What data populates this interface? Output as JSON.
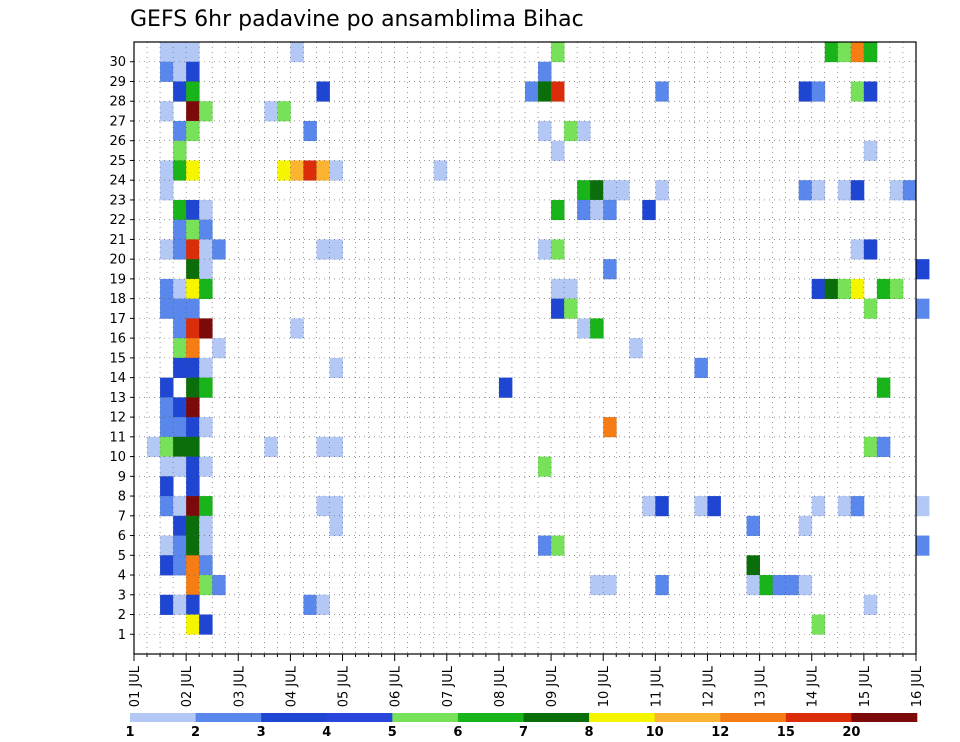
{
  "chart_data": {
    "type": "heatmap",
    "title": "GEFS 6hr padavine po ansamblima Bihac",
    "xlabel": "",
    "ylabel": "",
    "x_tick_labels": [
      "01 JUL",
      "02 JUL",
      "03 JUL",
      "04 JUL",
      "05 JUL",
      "06 JUL",
      "07 JUL",
      "08 JUL",
      "09 JUL",
      "10 JUL",
      "11 JUL",
      "12 JUL",
      "13 JUL",
      "14 JUL",
      "15 JUL",
      "16 JUL"
    ],
    "y_tick_labels": [
      "1",
      "2",
      "3",
      "4",
      "5",
      "6",
      "7",
      "8",
      "9",
      "10",
      "11",
      "12",
      "13",
      "14",
      "15",
      "16",
      "17",
      "18",
      "19",
      "20",
      "21",
      "22",
      "23",
      "24",
      "25",
      "26",
      "27",
      "28",
      "29",
      "30"
    ],
    "x_step_hours": 6,
    "grid": true,
    "colorbar": {
      "levels": [
        "1",
        "2",
        "3",
        "4",
        "5",
        "6",
        "7",
        "8",
        "10",
        "12",
        "15",
        "20"
      ],
      "colors": [
        "#b4c8f5",
        "#5a87eb",
        "#1e46d2",
        "#2846dc",
        "#78e15a",
        "#19b419",
        "#0a6e0a",
        "#f5f500",
        "#fab432",
        "#f57d14",
        "#dc2d0a",
        "#7d0a0a"
      ]
    },
    "cell_colors": [
      "#b4c8f5",
      "#5a87eb",
      "#1e46d2",
      "#78e15a",
      "#19b419",
      "#0a6e0a",
      "#f5f500",
      "#fab432",
      "#f57d14",
      "#dc2d0a",
      "#7d0a0a"
    ],
    "cells": [
      [
        2,
        30,
        0
      ],
      [
        3,
        30,
        0
      ],
      [
        4,
        30,
        0
      ],
      [
        12,
        30,
        0
      ],
      [
        32,
        30,
        3
      ],
      [
        53,
        30,
        4
      ],
      [
        54,
        30,
        3
      ],
      [
        55,
        30,
        8
      ],
      [
        56,
        30,
        4
      ],
      [
        2,
        29,
        1
      ],
      [
        3,
        29,
        0
      ],
      [
        4,
        29,
        2
      ],
      [
        31,
        29,
        1
      ],
      [
        3,
        28,
        2
      ],
      [
        4,
        28,
        4
      ],
      [
        14,
        28,
        2
      ],
      [
        30,
        28,
        1
      ],
      [
        31,
        28,
        5
      ],
      [
        32,
        28,
        9
      ],
      [
        40,
        28,
        1
      ],
      [
        51,
        28,
        2
      ],
      [
        52,
        28,
        1
      ],
      [
        55,
        28,
        3
      ],
      [
        56,
        28,
        2
      ],
      [
        2,
        27,
        0
      ],
      [
        4,
        27,
        10
      ],
      [
        5,
        27,
        3
      ],
      [
        10,
        27,
        0
      ],
      [
        11,
        27,
        3
      ],
      [
        3,
        26,
        1
      ],
      [
        4,
        26,
        3
      ],
      [
        13,
        26,
        1
      ],
      [
        31,
        26,
        0
      ],
      [
        33,
        26,
        3
      ],
      [
        34,
        26,
        0
      ],
      [
        3,
        25,
        3
      ],
      [
        32,
        25,
        0
      ],
      [
        56,
        25,
        0
      ],
      [
        2,
        24,
        0
      ],
      [
        3,
        24,
        4
      ],
      [
        4,
        24,
        6
      ],
      [
        11,
        24,
        6
      ],
      [
        12,
        24,
        7
      ],
      [
        13,
        24,
        9
      ],
      [
        14,
        24,
        7
      ],
      [
        15,
        24,
        0
      ],
      [
        23,
        24,
        0
      ],
      [
        2,
        23,
        0
      ],
      [
        34,
        23,
        4
      ],
      [
        35,
        23,
        5
      ],
      [
        36,
        23,
        0
      ],
      [
        37,
        23,
        0
      ],
      [
        40,
        23,
        0
      ],
      [
        51,
        23,
        1
      ],
      [
        52,
        23,
        0
      ],
      [
        54,
        23,
        0
      ],
      [
        55,
        23,
        2
      ],
      [
        58,
        23,
        0
      ],
      [
        59,
        23,
        1
      ],
      [
        3,
        22,
        4
      ],
      [
        4,
        22,
        2
      ],
      [
        5,
        22,
        0
      ],
      [
        32,
        22,
        4
      ],
      [
        34,
        22,
        1
      ],
      [
        35,
        22,
        0
      ],
      [
        36,
        22,
        1
      ],
      [
        39,
        22,
        2
      ],
      [
        3,
        21,
        1
      ],
      [
        4,
        21,
        3
      ],
      [
        5,
        21,
        1
      ],
      [
        2,
        20,
        0
      ],
      [
        3,
        20,
        1
      ],
      [
        4,
        20,
        9
      ],
      [
        5,
        20,
        0
      ],
      [
        6,
        20,
        1
      ],
      [
        14,
        20,
        0
      ],
      [
        15,
        20,
        0
      ],
      [
        31,
        20,
        0
      ],
      [
        32,
        20,
        3
      ],
      [
        55,
        20,
        0
      ],
      [
        56,
        20,
        2
      ],
      [
        4,
        19,
        5
      ],
      [
        5,
        19,
        0
      ],
      [
        36,
        19,
        1
      ],
      [
        60,
        19,
        2
      ],
      [
        2,
        18,
        1
      ],
      [
        3,
        18,
        0
      ],
      [
        4,
        18,
        6
      ],
      [
        5,
        18,
        4
      ],
      [
        32,
        18,
        0
      ],
      [
        33,
        18,
        0
      ],
      [
        52,
        18,
        2
      ],
      [
        53,
        18,
        5
      ],
      [
        54,
        18,
        3
      ],
      [
        55,
        18,
        6
      ],
      [
        57,
        18,
        4
      ],
      [
        58,
        18,
        3
      ],
      [
        2,
        17,
        1
      ],
      [
        3,
        17,
        1
      ],
      [
        4,
        17,
        1
      ],
      [
        32,
        17,
        2
      ],
      [
        33,
        17,
        3
      ],
      [
        56,
        17,
        3
      ],
      [
        60,
        17,
        1
      ],
      [
        3,
        16,
        1
      ],
      [
        4,
        16,
        9
      ],
      [
        5,
        16,
        10
      ],
      [
        12,
        16,
        0
      ],
      [
        34,
        16,
        0
      ],
      [
        35,
        16,
        4
      ],
      [
        3,
        15,
        3
      ],
      [
        4,
        15,
        8
      ],
      [
        6,
        15,
        0
      ],
      [
        38,
        15,
        0
      ],
      [
        3,
        14,
        2
      ],
      [
        4,
        14,
        2
      ],
      [
        5,
        14,
        0
      ],
      [
        15,
        14,
        0
      ],
      [
        43,
        14,
        1
      ],
      [
        2,
        13,
        2
      ],
      [
        4,
        13,
        5
      ],
      [
        5,
        13,
        4
      ],
      [
        28,
        13,
        2
      ],
      [
        57,
        13,
        4
      ],
      [
        2,
        12,
        1
      ],
      [
        3,
        12,
        2
      ],
      [
        4,
        12,
        10
      ],
      [
        2,
        11,
        1
      ],
      [
        3,
        11,
        1
      ],
      [
        4,
        11,
        2
      ],
      [
        5,
        11,
        0
      ],
      [
        36,
        11,
        8
      ],
      [
        1,
        10,
        0
      ],
      [
        2,
        10,
        3
      ],
      [
        3,
        10,
        5
      ],
      [
        4,
        10,
        5
      ],
      [
        10,
        10,
        0
      ],
      [
        14,
        10,
        0
      ],
      [
        15,
        10,
        0
      ],
      [
        56,
        10,
        3
      ],
      [
        57,
        10,
        1
      ],
      [
        2,
        9,
        0
      ],
      [
        3,
        9,
        0
      ],
      [
        4,
        9,
        2
      ],
      [
        5,
        9,
        0
      ],
      [
        31,
        9,
        3
      ],
      [
        2,
        8,
        2
      ],
      [
        4,
        8,
        2
      ],
      [
        2,
        7,
        1
      ],
      [
        3,
        7,
        0
      ],
      [
        4,
        7,
        10
      ],
      [
        5,
        7,
        4
      ],
      [
        14,
        7,
        0
      ],
      [
        15,
        7,
        0
      ],
      [
        39,
        7,
        0
      ],
      [
        40,
        7,
        2
      ],
      [
        43,
        7,
        0
      ],
      [
        44,
        7,
        2
      ],
      [
        52,
        7,
        0
      ],
      [
        54,
        7,
        0
      ],
      [
        55,
        7,
        1
      ],
      [
        60,
        7,
        0
      ],
      [
        3,
        6,
        2
      ],
      [
        4,
        6,
        5
      ],
      [
        5,
        6,
        0
      ],
      [
        15,
        6,
        0
      ],
      [
        47,
        6,
        1
      ],
      [
        51,
        6,
        0
      ],
      [
        2,
        5,
        0
      ],
      [
        3,
        5,
        1
      ],
      [
        4,
        5,
        5
      ],
      [
        5,
        5,
        0
      ],
      [
        31,
        5,
        1
      ],
      [
        32,
        5,
        3
      ],
      [
        60,
        5,
        1
      ],
      [
        2,
        4,
        2
      ],
      [
        3,
        4,
        1
      ],
      [
        4,
        4,
        8
      ],
      [
        5,
        4,
        1
      ],
      [
        47,
        4,
        5
      ],
      [
        4,
        3,
        8
      ],
      [
        5,
        3,
        3
      ],
      [
        6,
        3,
        1
      ],
      [
        35,
        3,
        0
      ],
      [
        36,
        3,
        0
      ],
      [
        40,
        3,
        1
      ],
      [
        47,
        3,
        0
      ],
      [
        48,
        3,
        4
      ],
      [
        49,
        3,
        1
      ],
      [
        50,
        3,
        1
      ],
      [
        51,
        3,
        0
      ],
      [
        2,
        2,
        2
      ],
      [
        3,
        2,
        0
      ],
      [
        4,
        2,
        2
      ],
      [
        13,
        2,
        1
      ],
      [
        14,
        2,
        0
      ],
      [
        56,
        2,
        0
      ],
      [
        4,
        1,
        6
      ],
      [
        5,
        1,
        2
      ],
      [
        52,
        1,
        3
      ]
    ]
  }
}
